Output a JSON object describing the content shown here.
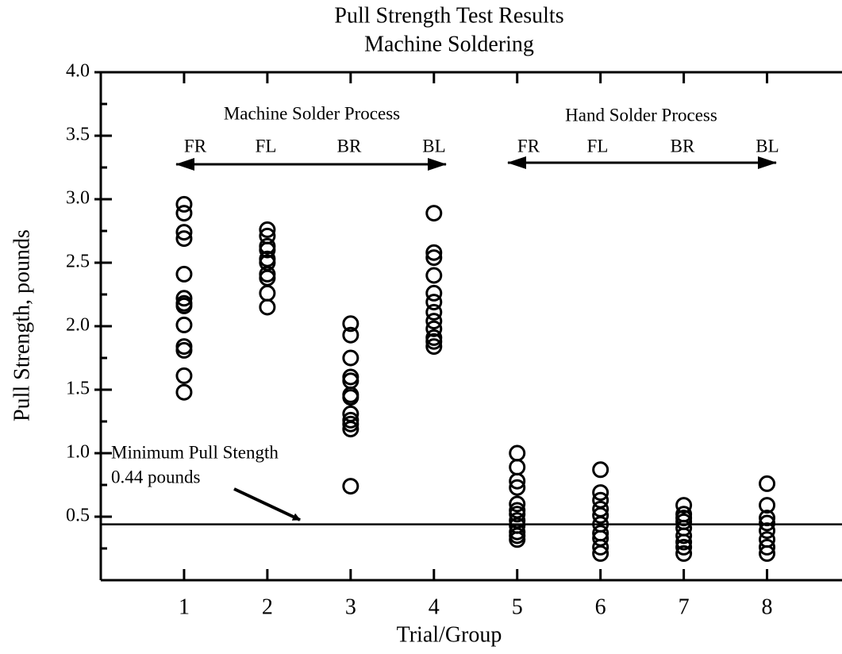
{
  "chart_data": {
    "type": "scatter",
    "title": "Pull Strength Test Results",
    "subtitle": "Machine Soldering",
    "x_label": "Trial/Group",
    "y_label": "Pull Strength, pounds",
    "xlim": [
      0,
      8.9
    ],
    "ylim": [
      0,
      4
    ],
    "xticks": [
      1,
      2,
      3,
      4,
      5,
      6,
      7,
      8
    ],
    "yticks": [
      0.5,
      {
        "value": 1,
        "label": "1.0"
      },
      1.5,
      {
        "value": 2,
        "label": "2.0"
      },
      2.5,
      {
        "value": 3,
        "label": "3.0"
      },
      3.5,
      {
        "value": 4,
        "label": "4.0"
      }
    ],
    "yminorticks": [
      0.25,
      0.75,
      1.25,
      1.75,
      2.25,
      2.75,
      3.25,
      3.75
    ],
    "threshold": 0.44,
    "threshold_label": [
      "Minimum Pull Stength",
      "0.44 pounds"
    ],
    "groups": [
      {
        "label": "Machine Solder Process",
        "subgroups": [
          "FR",
          "FL",
          "BR",
          "BL"
        ]
      },
      {
        "label": "Hand Solder Process",
        "subgroups": [
          "FR",
          "FL",
          "BR",
          "BL"
        ]
      }
    ],
    "series": [
      {
        "color": "#000000",
        "x": [
          1,
          1,
          1,
          1,
          1,
          1,
          1,
          1,
          1,
          1,
          1,
          1,
          1,
          2,
          2,
          2,
          2,
          2,
          2,
          2,
          2,
          2,
          2,
          3,
          3,
          3,
          3,
          3,
          3,
          3,
          3,
          3,
          3,
          3,
          3,
          4,
          4,
          4,
          4,
          4,
          4,
          4,
          4,
          4,
          4,
          4,
          4,
          5,
          5,
          5,
          5,
          5,
          5,
          5,
          5,
          5,
          5,
          5,
          5,
          6,
          6,
          6,
          6,
          6,
          6,
          6,
          6,
          6,
          6,
          7,
          7,
          7,
          7,
          7,
          7,
          7,
          7,
          7,
          8,
          8,
          8,
          8,
          8,
          8,
          8,
          8
        ],
        "values": [
          2.96,
          2.89,
          2.74,
          2.69,
          2.41,
          2.22,
          2.18,
          2.16,
          2.01,
          1.84,
          1.81,
          1.61,
          1.48,
          2.76,
          2.71,
          2.63,
          2.6,
          2.53,
          2.5,
          2.41,
          2.38,
          2.26,
          2.15,
          2.02,
          1.93,
          1.75,
          1.6,
          1.57,
          1.46,
          1.44,
          1.31,
          1.26,
          1.23,
          1.19,
          0.74,
          2.89,
          2.58,
          2.54,
          2.4,
          2.26,
          2.19,
          2.11,
          2.04,
          1.98,
          1.91,
          1.88,
          1.84,
          1.0,
          0.89,
          0.78,
          0.73,
          0.6,
          0.55,
          0.52,
          0.47,
          0.43,
          0.38,
          0.35,
          0.32,
          0.87,
          0.69,
          0.63,
          0.56,
          0.51,
          0.44,
          0.37,
          0.33,
          0.26,
          0.21,
          0.59,
          0.52,
          0.49,
          0.46,
          0.41,
          0.35,
          0.3,
          0.26,
          0.21,
          0.76,
          0.59,
          0.49,
          0.45,
          0.39,
          0.32,
          0.26,
          0.21
        ]
      }
    ]
  }
}
